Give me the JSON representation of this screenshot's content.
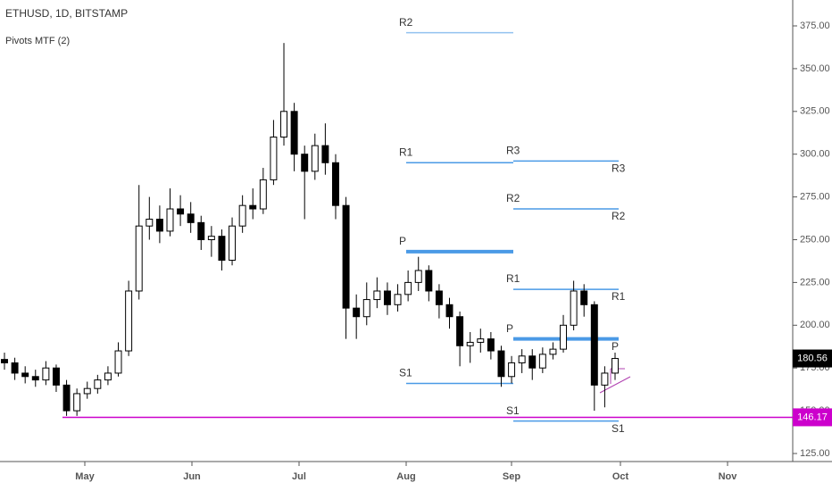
{
  "chart_data": {
    "type": "candlestick",
    "title": "ETHUSD, 1D, BITSTAMP",
    "subtitle": "Pivots MTF (2)",
    "months": [
      "May",
      "Jun",
      "Jul",
      "Aug",
      "Sep",
      "Oct",
      "Nov"
    ],
    "open": [
      180,
      178,
      172,
      170,
      168,
      175,
      165,
      150,
      160,
      163,
      168,
      172,
      185,
      220,
      258,
      262,
      255,
      268,
      265,
      260,
      250,
      252,
      238,
      258,
      270,
      268,
      285,
      310,
      325,
      300,
      290,
      305,
      295,
      270,
      210,
      205,
      215,
      220,
      212,
      218,
      225,
      232,
      220,
      212,
      205,
      188,
      190,
      192,
      185,
      170,
      178,
      182,
      175,
      183,
      186,
      200,
      220,
      212,
      165,
      172
    ],
    "high": [
      184,
      181,
      176,
      174,
      179,
      177,
      168,
      163,
      167,
      171,
      176,
      190,
      226,
      282,
      275,
      270,
      280,
      276,
      272,
      264,
      258,
      256,
      263,
      276,
      280,
      292,
      320,
      365,
      330,
      305,
      312,
      318,
      300,
      275,
      218,
      225,
      228,
      225,
      224,
      232,
      240,
      235,
      224,
      216,
      208,
      196,
      198,
      196,
      188,
      182,
      186,
      186,
      187,
      190,
      206,
      226,
      224,
      214,
      176,
      184
    ],
    "low": [
      174,
      168,
      166,
      164,
      165,
      161,
      147,
      147,
      157,
      160,
      165,
      170,
      182,
      215,
      250,
      248,
      252,
      258,
      254,
      244,
      240,
      232,
      235,
      254,
      262,
      265,
      282,
      305,
      290,
      262,
      285,
      288,
      262,
      192,
      192,
      200,
      210,
      206,
      208,
      214,
      220,
      214,
      204,
      198,
      176,
      178,
      184,
      180,
      164,
      166,
      172,
      168,
      172,
      180,
      184,
      197,
      205,
      150,
      152,
      168
    ],
    "close": [
      178,
      172,
      170,
      168,
      175,
      165,
      150,
      160,
      163,
      168,
      172,
      185,
      220,
      258,
      262,
      255,
      268,
      265,
      260,
      250,
      252,
      238,
      258,
      270,
      268,
      285,
      310,
      325,
      300,
      290,
      305,
      295,
      270,
      210,
      205,
      215,
      220,
      212,
      218,
      225,
      232,
      220,
      212,
      205,
      188,
      190,
      192,
      185,
      170,
      178,
      182,
      175,
      183,
      186,
      200,
      220,
      212,
      165,
      172,
      180.56
    ],
    "ylim": [
      125,
      385
    ],
    "yticks": [
      {
        "value": 125,
        "label": "125.00"
      },
      {
        "value": 150,
        "label": "150.00"
      },
      {
        "value": 175,
        "label": "175.00"
      },
      {
        "value": 200,
        "label": "200.00"
      },
      {
        "value": 225,
        "label": "225.00"
      },
      {
        "value": 250,
        "label": "250.00"
      },
      {
        "value": 275,
        "label": "275.00"
      },
      {
        "value": 300,
        "label": "300.00"
      },
      {
        "value": 325,
        "label": "325.00"
      },
      {
        "value": 350,
        "label": "350.00"
      },
      {
        "value": 375,
        "label": "375.00"
      }
    ],
    "last_price": {
      "value": 180.56,
      "label": "180.56"
    },
    "hline": {
      "value": 146.17,
      "label": "146.17",
      "color": "#cc00cc"
    },
    "pivots": [
      {
        "levels": [
          {
            "name": "R2",
            "value": 371
          },
          {
            "name": "R1",
            "value": 295
          },
          {
            "name": "P",
            "value": 243
          },
          {
            "name": "S1",
            "value": 166
          }
        ]
      },
      {
        "levels": [
          {
            "name": "R3",
            "value": 296
          },
          {
            "name": "R2",
            "value": 268
          },
          {
            "name": "R1",
            "value": 221
          },
          {
            "name": "P",
            "value": 192
          },
          {
            "name": "S1",
            "value": 144
          }
        ]
      }
    ],
    "up_color": "#ffffff",
    "down_color": "#000000",
    "pivot_color": "#4a9ae6"
  }
}
